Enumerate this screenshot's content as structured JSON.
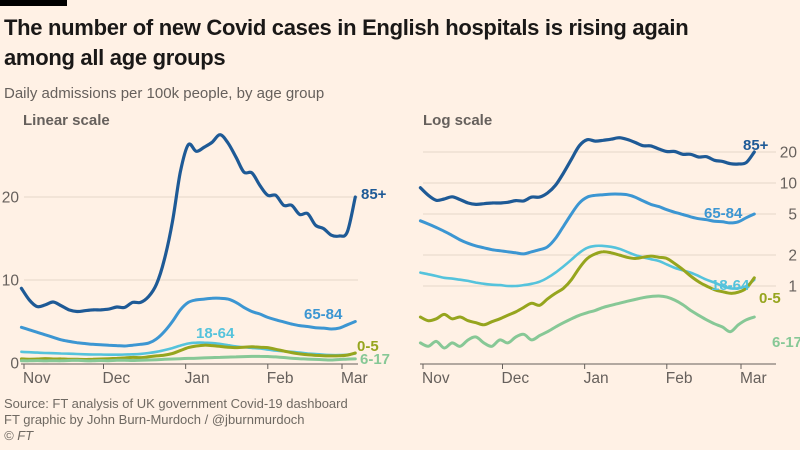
{
  "page": {
    "title_lines": [
      "The number of new Covid cases in English hospitals is rising again",
      "among all age groups"
    ],
    "subtitle": "Daily admissions per 100k people, by age group",
    "background_color": "#fff1e5",
    "footer": {
      "source": "Source: FT analysis of UK government Covid-19 dashboard",
      "credit": "FT graphic by John Burn-Murdoch / @jburnmurdoch",
      "copyright": "© FT"
    }
  },
  "chart_data": {
    "type": "line",
    "title": "Daily admissions per 100k people, by age group",
    "x_axis": {
      "unit": "days (Oct 31 to Mar 5)",
      "tick_labels": [
        "Nov",
        "Dec",
        "Jan",
        "Feb",
        "Mar"
      ],
      "tick_days": [
        1,
        31,
        62,
        93,
        121
      ]
    },
    "panels": [
      {
        "id": "linear",
        "label": "Linear scale",
        "y_scale": "linear",
        "y_ticks": [
          0,
          10,
          20
        ],
        "y_tick_side": "left",
        "ylim": [
          0,
          28.5
        ],
        "grid": true
      },
      {
        "id": "log",
        "label": "Log scale",
        "y_scale": "log",
        "y_ticks": [
          1,
          2,
          5,
          10,
          20
        ],
        "y_tick_side": "right",
        "ylim": [
          0.22,
          28.5
        ],
        "grid": true
      }
    ],
    "days": [
      0,
      3,
      6,
      9,
      12,
      15,
      18,
      21,
      24,
      27,
      30,
      33,
      36,
      39,
      42,
      45,
      48,
      51,
      54,
      57,
      60,
      63,
      66,
      69,
      72,
      75,
      78,
      81,
      84,
      87,
      90,
      93,
      96,
      99,
      102,
      105,
      108,
      111,
      114,
      117,
      120,
      123,
      126
    ],
    "series": [
      {
        "name": "85+",
        "color": "#1e5a96",
        "values": [
          9.0,
          7.6,
          6.8,
          7.0,
          7.35,
          6.9,
          6.4,
          6.2,
          6.3,
          6.4,
          6.4,
          6.5,
          6.75,
          6.7,
          7.3,
          7.3,
          8.0,
          9.5,
          12.5,
          17.0,
          23.0,
          26.3,
          25.5,
          26.0,
          26.6,
          27.5,
          26.5,
          24.8,
          23.0,
          22.9,
          21.4,
          20.2,
          20.2,
          19.0,
          19.0,
          17.9,
          18.0,
          16.6,
          16.2,
          15.4,
          15.3,
          15.8,
          20.0
        ]
      },
      {
        "name": "65-84",
        "color": "#3c96d2",
        "values": [
          4.3,
          4.0,
          3.7,
          3.4,
          3.1,
          2.8,
          2.6,
          2.45,
          2.35,
          2.25,
          2.2,
          2.15,
          2.1,
          2.05,
          2.15,
          2.25,
          2.4,
          2.9,
          3.8,
          5.0,
          6.4,
          7.3,
          7.6,
          7.7,
          7.8,
          7.8,
          7.7,
          7.3,
          6.7,
          6.2,
          5.9,
          5.5,
          5.2,
          4.95,
          4.7,
          4.5,
          4.4,
          4.25,
          4.2,
          4.1,
          4.2,
          4.6,
          5.0
        ]
      },
      {
        "name": "18-64",
        "color": "#55c3dc",
        "values": [
          1.35,
          1.3,
          1.25,
          1.2,
          1.18,
          1.15,
          1.12,
          1.08,
          1.05,
          1.03,
          1.02,
          1.0,
          1.0,
          1.02,
          1.05,
          1.1,
          1.2,
          1.35,
          1.55,
          1.8,
          2.1,
          2.35,
          2.45,
          2.45,
          2.4,
          2.3,
          2.15,
          2.0,
          1.9,
          1.82,
          1.75,
          1.62,
          1.5,
          1.42,
          1.35,
          1.25,
          1.15,
          1.08,
          1.0,
          0.95,
          0.95,
          1.0,
          1.15
        ]
      },
      {
        "name": "0-5",
        "color": "#96a51e",
        "values": [
          0.5,
          0.46,
          0.48,
          0.53,
          0.48,
          0.5,
          0.46,
          0.44,
          0.42,
          0.45,
          0.48,
          0.52,
          0.56,
          0.62,
          0.68,
          0.65,
          0.75,
          0.85,
          0.95,
          1.15,
          1.5,
          1.85,
          2.05,
          2.15,
          2.1,
          2.0,
          1.9,
          1.85,
          1.9,
          1.95,
          1.9,
          1.85,
          1.65,
          1.45,
          1.25,
          1.1,
          1.0,
          0.92,
          0.88,
          0.85,
          0.87,
          0.95,
          1.2
        ]
      },
      {
        "name": "6-17",
        "color": "#87c896",
        "values": [
          0.28,
          0.26,
          0.29,
          0.25,
          0.28,
          0.26,
          0.3,
          0.32,
          0.28,
          0.26,
          0.3,
          0.28,
          0.32,
          0.34,
          0.3,
          0.33,
          0.36,
          0.4,
          0.44,
          0.48,
          0.52,
          0.55,
          0.58,
          0.62,
          0.65,
          0.68,
          0.71,
          0.74,
          0.77,
          0.79,
          0.8,
          0.78,
          0.73,
          0.66,
          0.58,
          0.52,
          0.47,
          0.43,
          0.4,
          0.36,
          0.42,
          0.47,
          0.5
        ]
      }
    ],
    "style_colors": {
      "gridline": "#e5d7c9",
      "axis": "#66605c",
      "axis_text": "#66605c"
    }
  }
}
